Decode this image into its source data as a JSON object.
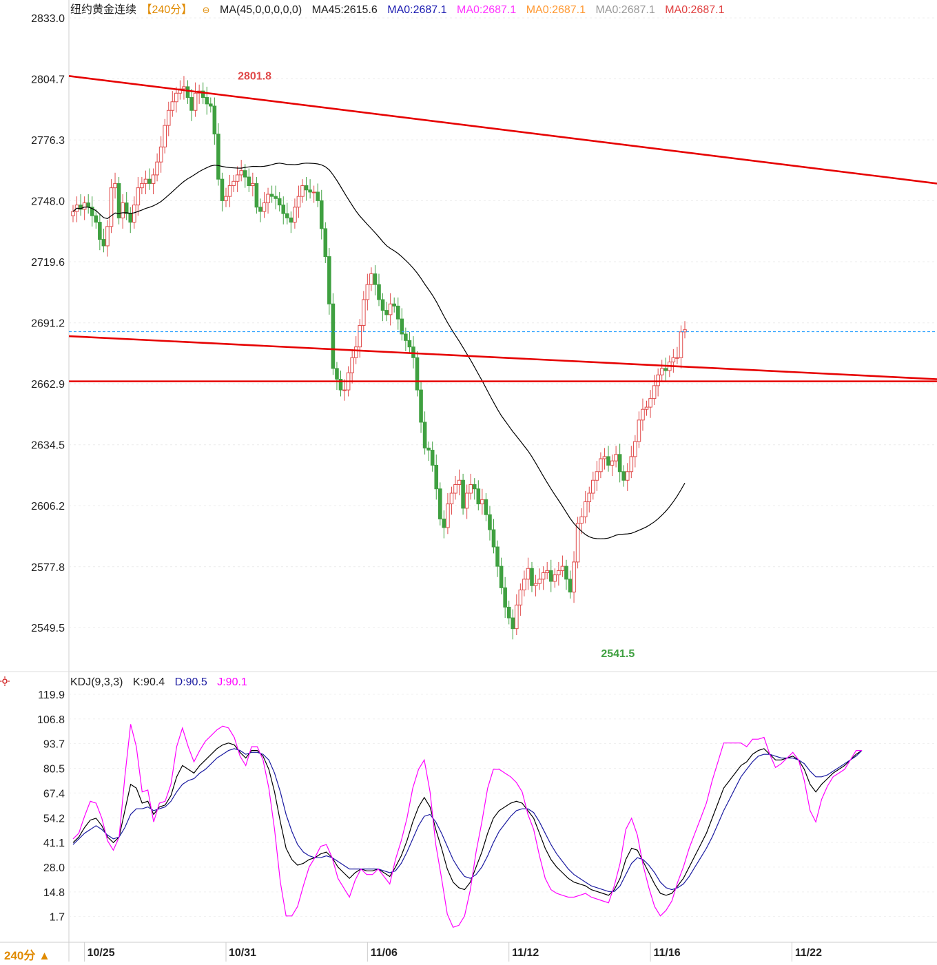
{
  "header": {
    "instrument": "纽约黄金连续",
    "period_badge": "【240分】",
    "ma_param": "MA(45,0,0,0,0,0)",
    "ma45_value": "MA45:2615.6",
    "ma0_labels": [
      "MA0:2687.1",
      "MA0:2687.1",
      "MA0:2687.1",
      "MA0:2687.1",
      "MA0:2687.1"
    ],
    "ma0_colors": [
      "#1a1ab0",
      "#ff33ff",
      "#ff9933",
      "#999999",
      "#e04040"
    ]
  },
  "kdj_header": {
    "param": "KDJ(9,3,3)",
    "k": "K:90.4",
    "d": "D:90.5",
    "j": "J:90.1"
  },
  "footer": {
    "period": "240分 ▲"
  },
  "colors": {
    "up": "#e04a4a",
    "down": "#3fa040",
    "trend": "#e60000",
    "ma45": "#000000",
    "k": "#000000",
    "d": "#1a1aa0",
    "j": "#ff00ff",
    "current": "#2aa0ff"
  },
  "chart_data": [
    {
      "type": "candlestick",
      "title": "纽约黄金连续【240分】",
      "ylim": [
        2530,
        2833
      ],
      "y_ticks": [
        "2833.0",
        "2804.7",
        "2776.3",
        "2748.0",
        "2719.6",
        "2691.2",
        "2662.9",
        "2634.5",
        "2606.2",
        "2577.8",
        "2549.5"
      ],
      "x_ticks": [
        "10/25",
        "10/31",
        "11/06",
        "11/12",
        "11/16",
        "11/22"
      ],
      "x_tick_bar_index": [
        3,
        40,
        77,
        114,
        151,
        188
      ],
      "annotations": {
        "high": "2801.8",
        "low": "2541.5",
        "high_bar": 42,
        "low_bar": 137
      },
      "current_price": 2687.1,
      "trend_lines": [
        {
          "from": [
            0,
            2806
          ],
          "to": [
            209,
            2756
          ]
        },
        {
          "from": [
            0,
            2685
          ],
          "to": [
            209,
            2665
          ]
        },
        {
          "from": [
            0,
            2664
          ],
          "to": [
            209,
            2664
          ]
        }
      ],
      "closes": [
        2743,
        2746,
        2744,
        2747,
        2745,
        2741,
        2738,
        2730,
        2727,
        2736,
        2754,
        2756,
        2740,
        2747,
        2742,
        2738,
        2746,
        2754,
        2756,
        2758,
        2756,
        2760,
        2766,
        2773,
        2783,
        2790,
        2794,
        2798,
        2800,
        2801,
        2796,
        2790,
        2798,
        2799,
        2796,
        2793,
        2792,
        2779,
        2758,
        2748,
        2750,
        2755,
        2757,
        2760,
        2762,
        2759,
        2755,
        2756,
        2745,
        2743,
        2747,
        2751,
        2750,
        2749,
        2746,
        2742,
        2740,
        2738,
        2745,
        2750,
        2755,
        2753,
        2752,
        2752,
        2748,
        2735,
        2722,
        2700,
        2670,
        2665,
        2660,
        2660,
        2668,
        2675,
        2680,
        2690,
        2702,
        2709,
        2714,
        2709,
        2702,
        2697,
        2695,
        2700,
        2699,
        2693,
        2686,
        2683,
        2680,
        2675,
        2660,
        2645,
        2633,
        2632,
        2625,
        2614,
        2600,
        2596,
        2607,
        2612,
        2616,
        2618,
        2605,
        2612,
        2616,
        2614,
        2607,
        2609,
        2602,
        2595,
        2587,
        2578,
        2568,
        2559,
        2554,
        2549,
        2560,
        2567,
        2572,
        2577,
        2569,
        2570,
        2572,
        2575,
        2576,
        2571,
        2574,
        2576,
        2578,
        2572,
        2566,
        2580,
        2598,
        2601,
        2608,
        2612,
        2618,
        2622,
        2628,
        2629,
        2625,
        2627,
        2630,
        2622,
        2618,
        2622,
        2629,
        2636,
        2646,
        2651,
        2652,
        2656,
        2662,
        2667,
        2670,
        2669,
        2673,
        2675,
        2675,
        2687,
        2688
      ],
      "kdj": {
        "K": [
          41,
          44,
          49,
          53,
          54,
          50,
          44,
          41,
          44,
          58,
          72,
          70,
          62,
          63,
          56,
          60,
          61,
          66,
          76,
          82,
          80,
          78,
          82,
          85,
          88,
          91,
          93,
          94,
          93,
          89,
          86,
          90,
          90,
          87,
          80,
          68,
          52,
          38,
          32,
          29,
          30,
          32,
          33,
          35,
          36,
          33,
          28,
          25,
          22,
          25,
          27,
          26,
          26,
          27,
          25,
          23,
          28,
          34,
          42,
          52,
          60,
          65,
          60,
          48,
          38,
          27,
          20,
          17,
          16,
          20,
          28,
          36,
          46,
          54,
          58,
          60,
          62,
          63,
          62,
          58,
          54,
          46,
          38,
          32,
          28,
          25,
          22,
          20,
          19,
          18,
          16,
          15,
          14,
          13,
          16,
          22,
          32,
          38,
          37,
          31,
          25,
          19,
          14,
          13,
          14,
          18,
          22,
          28,
          34,
          40,
          46,
          54,
          62,
          70,
          74,
          78,
          82,
          84,
          88,
          90,
          91,
          88,
          85,
          85,
          86,
          87,
          85,
          80,
          72,
          68,
          72,
          75,
          78,
          80,
          82,
          85,
          88,
          90
        ],
        "D": [
          40,
          43,
          46,
          48,
          50,
          48,
          45,
          43,
          44,
          49,
          56,
          59,
          59,
          60,
          58,
          59,
          60,
          63,
          68,
          72,
          74,
          75,
          78,
          80,
          83,
          86,
          88,
          90,
          91,
          90,
          88,
          89,
          89,
          88,
          85,
          78,
          68,
          56,
          47,
          40,
          36,
          34,
          33,
          33,
          34,
          33,
          31,
          29,
          27,
          27,
          27,
          27,
          27,
          27,
          26,
          25,
          26,
          30,
          36,
          43,
          50,
          55,
          56,
          52,
          46,
          39,
          32,
          27,
          23,
          22,
          24,
          28,
          34,
          41,
          47,
          51,
          55,
          58,
          59,
          59,
          57,
          52,
          46,
          40,
          35,
          31,
          27,
          24,
          22,
          20,
          18,
          17,
          16,
          15,
          15,
          18,
          24,
          30,
          33,
          32,
          29,
          25,
          20,
          17,
          16,
          17,
          19,
          23,
          28,
          33,
          38,
          44,
          51,
          58,
          64,
          70,
          76,
          80,
          84,
          87,
          88,
          88,
          87,
          86,
          86,
          86,
          85,
          83,
          79,
          76,
          76,
          77,
          79,
          81,
          83,
          85,
          87,
          90
        ],
        "J": [
          43,
          46,
          55,
          63,
          62,
          54,
          42,
          37,
          44,
          76,
          104,
          92,
          68,
          69,
          52,
          62,
          63,
          72,
          92,
          102,
          92,
          84,
          90,
          95,
          98,
          101,
          103,
          102,
          97,
          87,
          82,
          92,
          92,
          85,
          70,
          48,
          20,
          2,
          2,
          7,
          18,
          28,
          33,
          39,
          40,
          33,
          22,
          17,
          12,
          21,
          27,
          24,
          24,
          27,
          23,
          19,
          32,
          42,
          54,
          70,
          80,
          85,
          68,
          40,
          22,
          3,
          -4,
          -3,
          2,
          16,
          36,
          52,
          70,
          80,
          80,
          78,
          76,
          73,
          68,
          56,
          48,
          34,
          22,
          16,
          14,
          13,
          12,
          12,
          13,
          14,
          12,
          11,
          10,
          9,
          18,
          30,
          48,
          54,
          45,
          29,
          17,
          7,
          2,
          5,
          10,
          20,
          28,
          38,
          46,
          54,
          62,
          74,
          84,
          94,
          94,
          94,
          94,
          92,
          96,
          96,
          97,
          88,
          81,
          83,
          86,
          89,
          85,
          74,
          58,
          52,
          64,
          71,
          76,
          78,
          80,
          85,
          90,
          90
        ]
      }
    }
  ]
}
